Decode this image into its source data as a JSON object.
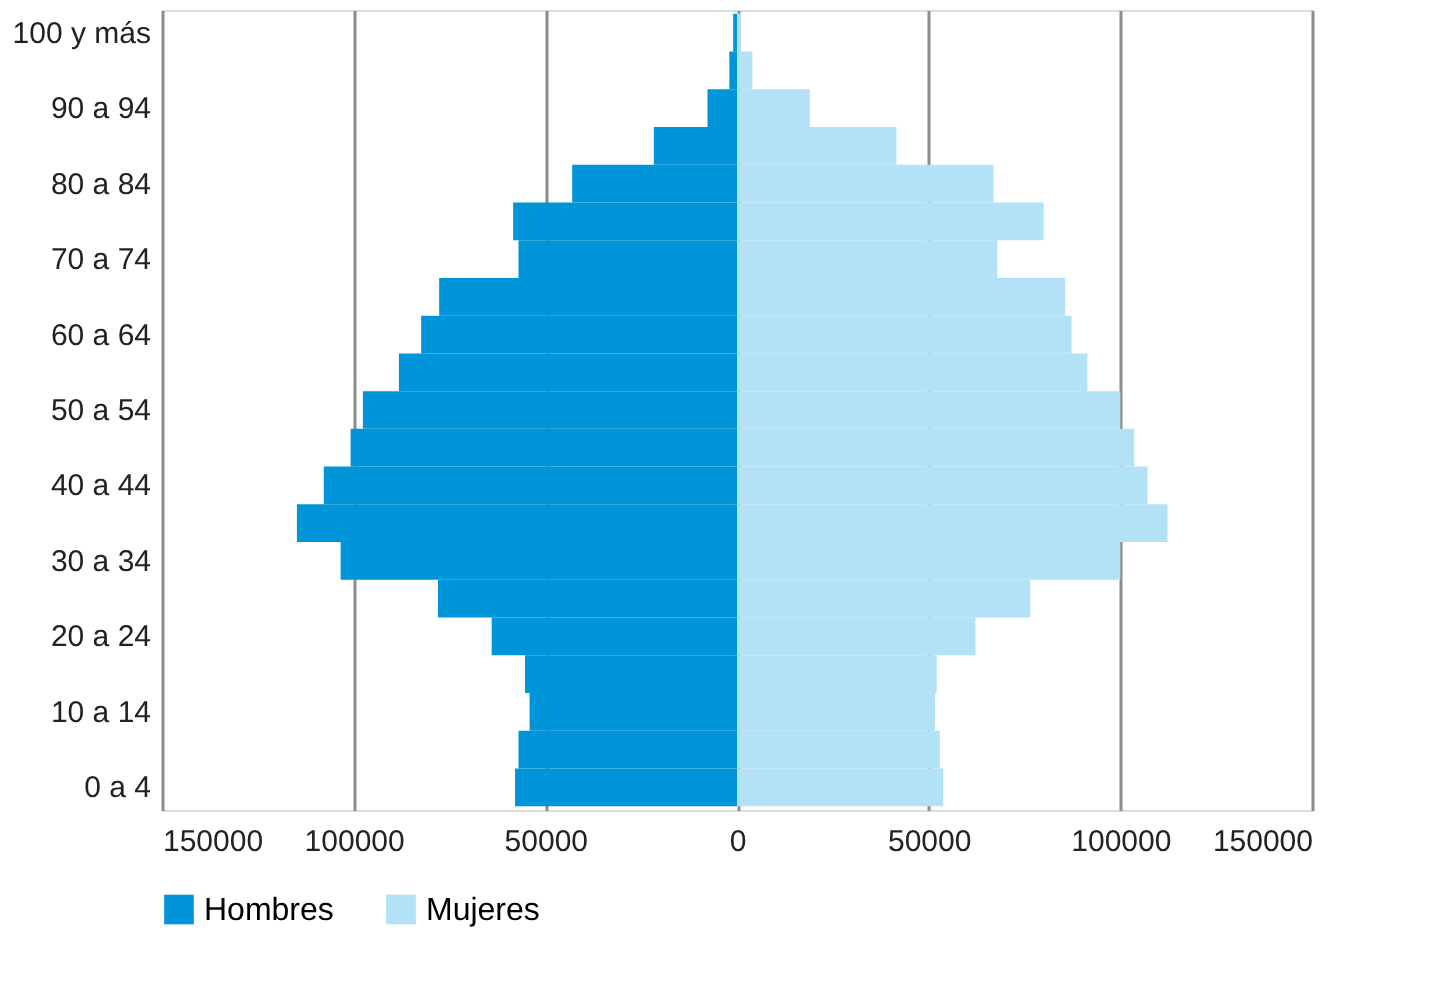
{
  "chart_data": {
    "type": "bar",
    "orientation": "horizontal",
    "categories": [
      "100 y más",
      null,
      "90 a 94",
      null,
      "80 a 84",
      null,
      "70 a 74",
      null,
      "60 a 64",
      null,
      "50 a 54",
      null,
      "40 a 44",
      null,
      "30 a 34",
      null,
      "20 a 24",
      null,
      "10 a 14",
      null,
      "0 a 4"
    ],
    "series": [
      {
        "name": "Hombres",
        "color": "#0095d9",
        "values": [
          -1000,
          -2000,
          -7700,
          -21700,
          -43000,
          -58400,
          -57000,
          -77700,
          -82400,
          -88200,
          -97600,
          -100800,
          -107800,
          -114800,
          -103400,
          -78000,
          -64000,
          -55300,
          -54100,
          -57000,
          -57900
        ]
      },
      {
        "name": "Mujeres",
        "color": "#b3e1f6",
        "values": [
          1000,
          4000,
          19000,
          41600,
          66900,
          80000,
          67900,
          85600,
          87300,
          91400,
          100000,
          103600,
          107100,
          112300,
          100000,
          76500,
          62200,
          52100,
          51700,
          52900,
          53800
        ]
      }
    ],
    "xlim": [
      -150000,
      150000
    ],
    "xticks": [
      {
        "value": -150000,
        "label": "150000"
      },
      {
        "value": -100000,
        "label": "100000"
      },
      {
        "value": -50000,
        "label": "50000"
      },
      0,
      50000,
      100000,
      150000
    ],
    "stacked": true,
    "grid": "x",
    "legend": "bottom"
  }
}
